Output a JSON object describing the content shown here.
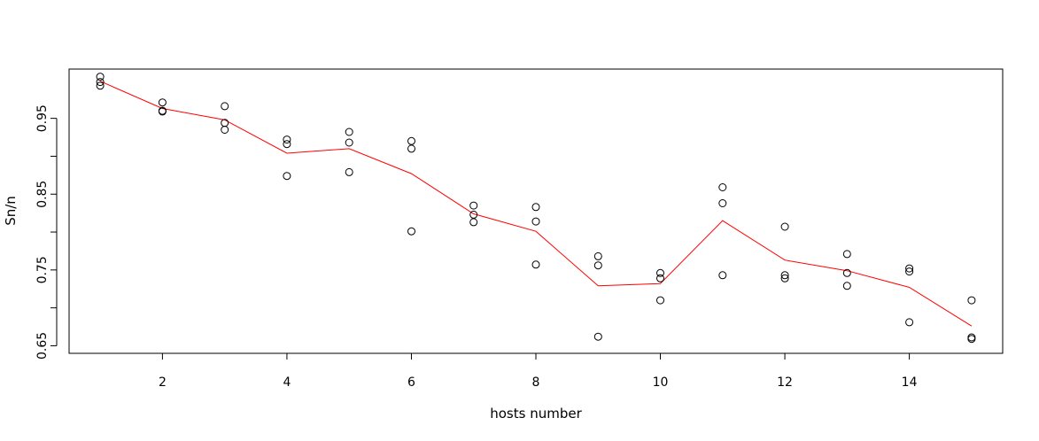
{
  "chart_data": {
    "type": "scatter",
    "title": "",
    "xlabel": "hosts number",
    "ylabel": "Sn/n",
    "xlim": [
      0.5,
      15.5
    ],
    "ylim": [
      0.64,
      1.015
    ],
    "x_ticks": [
      2,
      4,
      6,
      8,
      10,
      12,
      14
    ],
    "x_tick_labels": [
      "2",
      "4",
      "6",
      "8",
      "10",
      "12",
      "14"
    ],
    "y_ticks": [
      0.65,
      0.75,
      0.85,
      0.95
    ],
    "y_tick_labels": [
      "0.65",
      "0.75",
      "0.85",
      "0.95"
    ],
    "grid": false,
    "legend": "none",
    "series": [
      {
        "kind": "points",
        "color": "#000000",
        "marker": "open-circle",
        "points": [
          [
            1,
            1.005
          ],
          [
            1,
            0.998
          ],
          [
            1,
            0.993
          ],
          [
            2,
            0.971
          ],
          [
            2,
            0.96
          ],
          [
            2,
            0.959
          ],
          [
            3,
            0.966
          ],
          [
            3,
            0.944
          ],
          [
            3,
            0.935
          ],
          [
            4,
            0.922
          ],
          [
            4,
            0.916
          ],
          [
            4,
            0.874
          ],
          [
            5,
            0.932
          ],
          [
            5,
            0.918
          ],
          [
            5,
            0.879
          ],
          [
            6,
            0.92
          ],
          [
            6,
            0.91
          ],
          [
            6,
            0.801
          ],
          [
            7,
            0.835
          ],
          [
            7,
            0.823
          ],
          [
            7,
            0.813
          ],
          [
            8,
            0.833
          ],
          [
            8,
            0.814
          ],
          [
            8,
            0.757
          ],
          [
            9,
            0.768
          ],
          [
            9,
            0.756
          ],
          [
            9,
            0.662
          ],
          [
            10,
            0.746
          ],
          [
            10,
            0.739
          ],
          [
            10,
            0.71
          ],
          [
            11,
            0.859
          ],
          [
            11,
            0.838
          ],
          [
            11,
            0.743
          ],
          [
            12,
            0.807
          ],
          [
            12,
            0.743
          ],
          [
            12,
            0.739
          ],
          [
            13,
            0.771
          ],
          [
            13,
            0.746
          ],
          [
            13,
            0.729
          ],
          [
            14,
            0.752
          ],
          [
            14,
            0.748
          ],
          [
            14,
            0.681
          ],
          [
            15,
            0.71
          ],
          [
            15,
            0.661
          ],
          [
            15,
            0.659
          ]
        ]
      },
      {
        "kind": "line",
        "color": "#ff0000",
        "x": [
          1,
          2,
          3,
          4,
          5,
          6,
          7,
          8,
          9,
          10,
          11,
          12,
          13,
          14,
          15
        ],
        "y": [
          0.999,
          0.963,
          0.948,
          0.904,
          0.91,
          0.877,
          0.824,
          0.801,
          0.729,
          0.732,
          0.815,
          0.763,
          0.749,
          0.727,
          0.676
        ]
      }
    ]
  }
}
